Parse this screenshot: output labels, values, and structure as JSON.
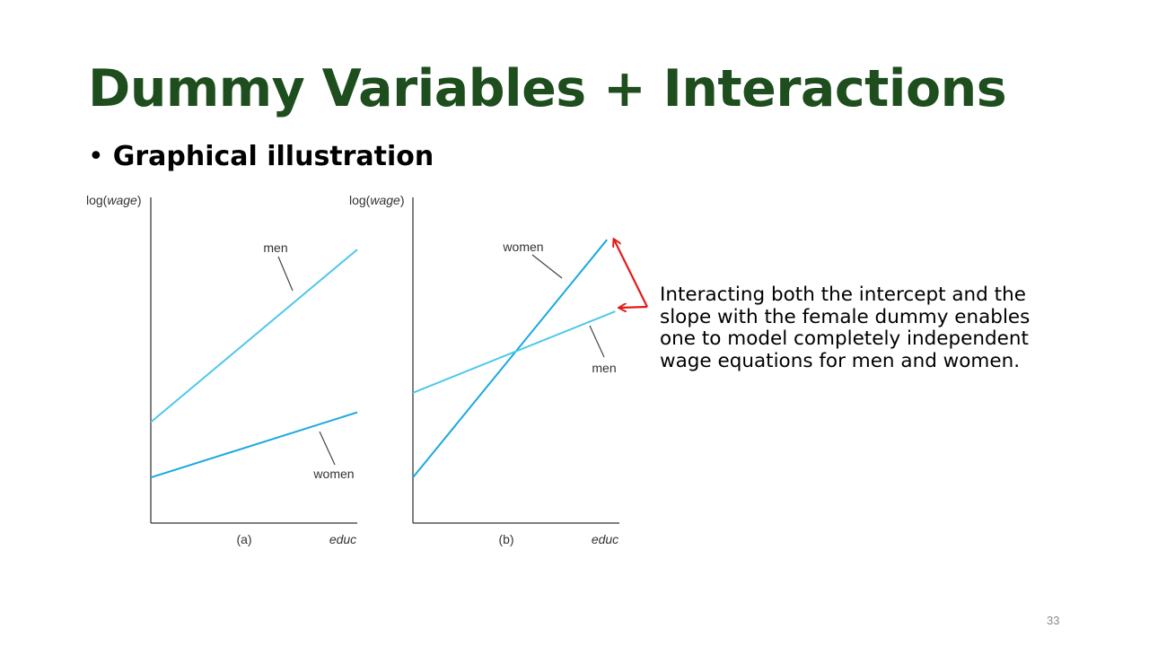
{
  "slide": {
    "title": "Dummy Variables + Interactions",
    "bullet": "Graphical illustration",
    "note": "Interacting both the intercept and the slope with the female dummy enables one to model completely independent wage equations for men and women.",
    "page_number": "33"
  },
  "colors": {
    "title": "#1e4d1e",
    "men_line": "#4ec8ea",
    "women_line": "#1aa8e0",
    "axis": "#555555",
    "arrow": "#e31b1b"
  },
  "chart_data": [
    {
      "type": "line",
      "panel_label": "(a)",
      "ylabel_prefix": "log(",
      "ylabel_var": "wage",
      "ylabel_suffix": ")",
      "xlabel": "educ",
      "xlim": [
        0,
        1
      ],
      "ylim": [
        0,
        1
      ],
      "series": [
        {
          "name": "men",
          "x": [
            0,
            1
          ],
          "y": [
            0.31,
            0.84
          ]
        },
        {
          "name": "women",
          "x": [
            0,
            1
          ],
          "y": [
            0.14,
            0.34
          ]
        }
      ]
    },
    {
      "type": "line",
      "panel_label": "(b)",
      "ylabel_prefix": "log(",
      "ylabel_var": "wage",
      "ylabel_suffix": ")",
      "xlabel": "educ",
      "xlim": [
        0,
        1
      ],
      "ylim": [
        0,
        1
      ],
      "series": [
        {
          "name": "women",
          "x": [
            0,
            0.94
          ],
          "y": [
            0.14,
            0.87
          ]
        },
        {
          "name": "men",
          "x": [
            0,
            0.98
          ],
          "y": [
            0.4,
            0.65
          ]
        }
      ]
    }
  ]
}
